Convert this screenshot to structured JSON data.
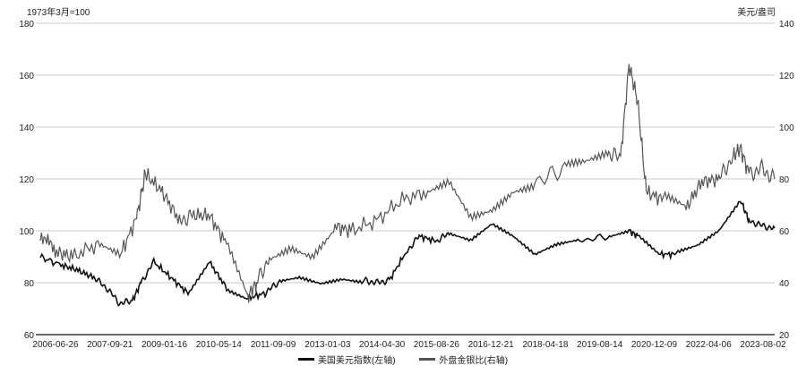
{
  "chart_data": {
    "type": "line",
    "left_axis_label": "1973年3月=100",
    "right_axis_label": "美元/盎司",
    "left_ylim": [
      60,
      180
    ],
    "left_ticks": [
      60,
      80,
      100,
      120,
      140,
      160,
      180
    ],
    "right_ylim": [
      20,
      140
    ],
    "right_ticks": [
      20,
      40,
      60,
      80,
      100,
      120,
      140
    ],
    "x_tick_labels": [
      "2006-06-26",
      "2007-09-21",
      "2009-01-16",
      "2010-05-14",
      "2011-09-09",
      "2013-01-03",
      "2014-04-30",
      "2015-08-26",
      "2016-12-21",
      "2018-04-18",
      "2019-08-14",
      "2020-12-09",
      "2022-04-06",
      "2023-08-02"
    ],
    "grid": "horizontal",
    "legend_position": "bottom",
    "series": [
      {
        "name": "美国美元指数(左轴)",
        "axis": "left",
        "color": "#111111",
        "x": [
          2006.45,
          2006.9,
          2007.3,
          2007.7,
          2008.0,
          2008.3,
          2008.6,
          2008.8,
          2009.1,
          2009.5,
          2009.9,
          2010.4,
          2010.8,
          2011.3,
          2011.7,
          2012.0,
          2012.5,
          2013.0,
          2013.5,
          2014.0,
          2014.3,
          2014.6,
          2015.0,
          2015.3,
          2015.7,
          2016.0,
          2016.5,
          2017.0,
          2017.5,
          2018.0,
          2018.5,
          2019.0,
          2019.7,
          2020.2,
          2020.4,
          2020.9,
          2021.3,
          2021.8,
          2022.3,
          2022.8,
          2023.0,
          2023.3,
          2023.6
        ],
        "values": [
          90,
          87,
          85,
          82,
          78,
          72,
          73,
          80,
          88,
          82,
          76,
          88,
          78,
          74,
          76,
          80,
          82,
          80,
          82,
          81,
          80,
          81,
          92,
          98,
          96,
          99,
          96,
          102,
          97,
          90,
          94,
          96,
          98,
          100,
          98,
          91,
          91,
          94,
          100,
          112,
          104,
          102,
          101
        ]
      },
      {
        "name": "外盘金银比(右轴)",
        "axis": "right",
        "color": "#555555",
        "x": [
          2006.45,
          2006.8,
          2007.2,
          2007.8,
          2008.3,
          2008.7,
          2008.9,
          2009.3,
          2009.7,
          2010.0,
          2010.4,
          2010.8,
          2011.3,
          2011.5,
          2011.8,
          2012.3,
          2012.8,
          2013.3,
          2013.7,
          2014.3,
          2014.9,
          2015.5,
          2016.0,
          2016.5,
          2017.0,
          2017.5,
          2018.0,
          2018.7,
          2019.2,
          2019.7,
          2020.0,
          2020.2,
          2020.4,
          2020.6,
          2021.0,
          2021.5,
          2021.9,
          2022.3,
          2022.6,
          2022.8,
          2023.0,
          2023.3,
          2023.6
        ],
        "values": [
          59,
          52,
          50,
          55,
          50,
          65,
          82,
          75,
          64,
          66,
          66,
          55,
          35,
          40,
          50,
          55,
          52,
          62,
          60,
          64,
          72,
          75,
          80,
          67,
          70,
          77,
          79,
          84,
          86,
          90,
          88,
          124,
          110,
          75,
          72,
          68,
          79,
          80,
          88,
          92,
          82,
          84,
          80
        ]
      }
    ]
  }
}
